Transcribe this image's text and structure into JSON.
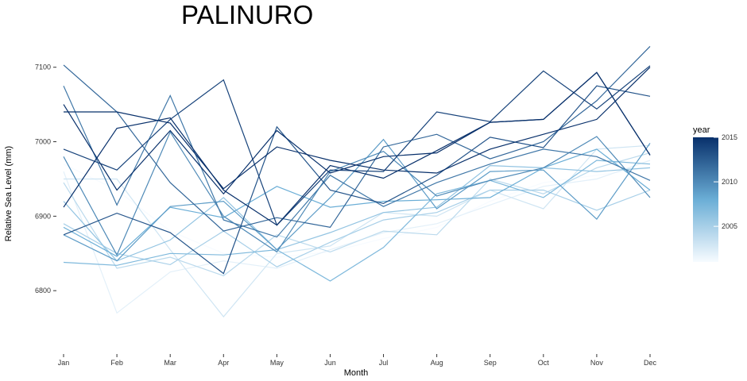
{
  "chart_data": {
    "type": "line",
    "title": "PALINURO",
    "xlabel": "Month",
    "ylabel": "Relative Sea Level (mm)",
    "categories": [
      "Jan",
      "Feb",
      "Mar",
      "Apr",
      "May",
      "Jun",
      "Jul",
      "Aug",
      "Sep",
      "Oct",
      "Nov",
      "Dec"
    ],
    "y_ticks": [
      6800,
      6900,
      7000,
      7100
    ],
    "ylim": [
      6732,
      7137
    ],
    "grid": false,
    "legend": {
      "title": "year",
      "position": "right",
      "type": "colorbar",
      "min": 2001,
      "max": 2015,
      "ticks": [
        2005,
        2010,
        2015
      ],
      "color_low": "#f7fbff",
      "color_high": "#08306b"
    },
    "series": [
      {
        "year": 2001,
        "values": [
          6970,
          6935,
          6880,
          6850,
          6845,
          6852,
          6870,
          6885,
          6920,
          6945,
          6955,
          6965
        ]
      },
      {
        "year": 2002,
        "values": [
          6960,
          6770,
          6825,
          6840,
          6830,
          6855,
          6878,
          6890,
          6915,
          6940,
          6950,
          6975
        ]
      },
      {
        "year": 2003,
        "values": [
          6950,
          6950,
          6855,
          6765,
          6850,
          6860,
          6905,
          6900,
          6935,
          6910,
          6990,
          6995
        ]
      },
      {
        "year": 2004,
        "values": [
          6945,
          6830,
          6845,
          6820,
          6875,
          6852,
          6880,
          6875,
          6950,
          6930,
          6965,
          6985
        ]
      },
      {
        "year": 2005,
        "values": [
          6890,
          6850,
          6835,
          6880,
          6832,
          6865,
          6895,
          6905,
          6935,
          6935,
          6908,
          6935
        ]
      },
      {
        "year": 2006,
        "values": [
          6920,
          6840,
          6868,
          6925,
          6855,
          6878,
          6905,
          6912,
          6968,
          6965,
          6960,
          6965
        ]
      },
      {
        "year": 2007,
        "values": [
          6838,
          6834,
          6850,
          6848,
          6855,
          6813,
          6858,
          6930,
          6948,
          6925,
          6975,
          6970
        ]
      },
      {
        "year": 2008,
        "values": [
          6885,
          6846,
          6912,
          6898,
          6940,
          6912,
          6920,
          6922,
          6925,
          6965,
          6990,
          6935
        ]
      },
      {
        "year": 2009,
        "values": [
          6875,
          6840,
          6913,
          6920,
          6855,
          6925,
          7003,
          6910,
          6960,
          6962,
          6896,
          6998
        ]
      },
      {
        "year": 2010,
        "values": [
          6980,
          6848,
          7013,
          6900,
          6852,
          6960,
          6987,
          6927,
          6948,
          6965,
          7007,
          6925
        ]
      },
      {
        "year": 2011,
        "values": [
          7075,
          6915,
          7062,
          6895,
          6872,
          6955,
          6913,
          6945,
          6970,
          6990,
          6980,
          6948
        ]
      },
      {
        "year": 2012,
        "values": [
          7103,
          7040,
          6945,
          6880,
          6898,
          6885,
          6993,
          7010,
          6977,
          7000,
          7055,
          7128
        ]
      },
      {
        "year": 2013,
        "values": [
          6875,
          6904,
          6878,
          6823,
          7020,
          6935,
          6917,
          6955,
          7006,
          6992,
          7075,
          7061
        ]
      },
      {
        "year": 2014,
        "values": [
          6990,
          6962,
          7030,
          7083,
          6888,
          6962,
          6960,
          7040,
          7027,
          7095,
          7044,
          7102
        ]
      },
      {
        "year": 2015,
        "values": [
          7040,
          7040,
          7025,
          6937,
          6993,
          6975,
          6962,
          6958,
          6990,
          7010,
          7030,
          7100
        ]
      },
      {
        "year": 2015,
        "values": [
          6912,
          7018,
          7032,
          6935,
          6888,
          6968,
          6951,
          6988,
          7026,
          7030,
          7093,
          6982
        ]
      },
      {
        "year": 2015,
        "values": [
          7050,
          6935,
          7015,
          6930,
          7015,
          6958,
          6980,
          6985,
          7026,
          7030,
          7093,
          6982
        ]
      }
    ]
  }
}
